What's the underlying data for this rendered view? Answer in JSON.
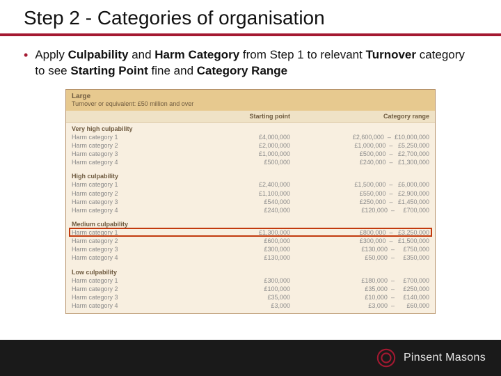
{
  "title": "Step 2 - Categories of organisation",
  "bullet": {
    "pre": "Apply ",
    "b1": "Culpability",
    "mid1": " and ",
    "b2": "Harm Category",
    "mid2": " from Step 1 to relevant ",
    "b3": "Turnover",
    "mid3": " category to see ",
    "b4": "Starting Point",
    "mid4": " fine and ",
    "b5": "Category Range"
  },
  "table": {
    "hdr_top": "Large",
    "hdr_sub": "Turnover or equivalent: £50 million and over",
    "col_sp": "Starting point",
    "col_cr": "Category range",
    "groups": [
      {
        "label": "Very high culpability",
        "rows": [
          {
            "name": "Harm category 1",
            "sp": "£4,000,000",
            "cr": "£2,600,000  –  £10,000,000"
          },
          {
            "name": "Harm category 2",
            "sp": "£2,000,000",
            "cr": "£1,000,000  –   £5,250,000"
          },
          {
            "name": "Harm category 3",
            "sp": "£1,000,000",
            "cr": "  £500,000  –   £2,700,000"
          },
          {
            "name": "Harm category 4",
            "sp": "£500,000",
            "cr": "  £240,000  –   £1,300,000"
          }
        ]
      },
      {
        "label": "High culpability",
        "rows": [
          {
            "name": "Harm category 1",
            "sp": "£2,400,000",
            "cr": "£1,500,000  –   £6,000,000"
          },
          {
            "name": "Harm category 2",
            "sp": "£1,100,000",
            "cr": "  £550,000  –   £2,900,000"
          },
          {
            "name": "Harm category 3",
            "sp": "£540,000",
            "cr": "  £250,000  –   £1,450,000"
          },
          {
            "name": "Harm category 4",
            "sp": "£240,000",
            "cr": "  £120,000  –     £700,000"
          }
        ]
      },
      {
        "label": "Medium culpability",
        "highlight_row": 0,
        "rows": [
          {
            "name": "Harm category 1",
            "sp": "£1,300,000",
            "cr": "  £800,000  –   £3,250,000"
          },
          {
            "name": "Harm category 2",
            "sp": "£600,000",
            "cr": "  £300,000  –   £1,500,000"
          },
          {
            "name": "Harm category 3",
            "sp": "£300,000",
            "cr": "  £130,000  –     £750,000"
          },
          {
            "name": "Harm category 4",
            "sp": "£130,000",
            "cr": "     £50,000  –     £350,000"
          }
        ]
      },
      {
        "label": "Low culpability",
        "rows": [
          {
            "name": "Harm category 1",
            "sp": "£300,000",
            "cr": "  £180,000  –     £700,000"
          },
          {
            "name": "Harm category 2",
            "sp": "£100,000",
            "cr": "     £35,000  –     £250,000"
          },
          {
            "name": "Harm category 3",
            "sp": "£35,000",
            "cr": "     £10,000  –     £140,000"
          },
          {
            "name": "Harm category 4",
            "sp": "£3,000",
            "cr": "       £3,000  –       £60,000"
          }
        ]
      }
    ]
  },
  "brand": "Pinsent Masons",
  "colors": {
    "accent": "#a41931",
    "table_header_bg": "#e7c98f",
    "table_bg": "#f8efe0",
    "footer_bg": "#1a1a1a",
    "highlight_border": "#c23a0e"
  }
}
